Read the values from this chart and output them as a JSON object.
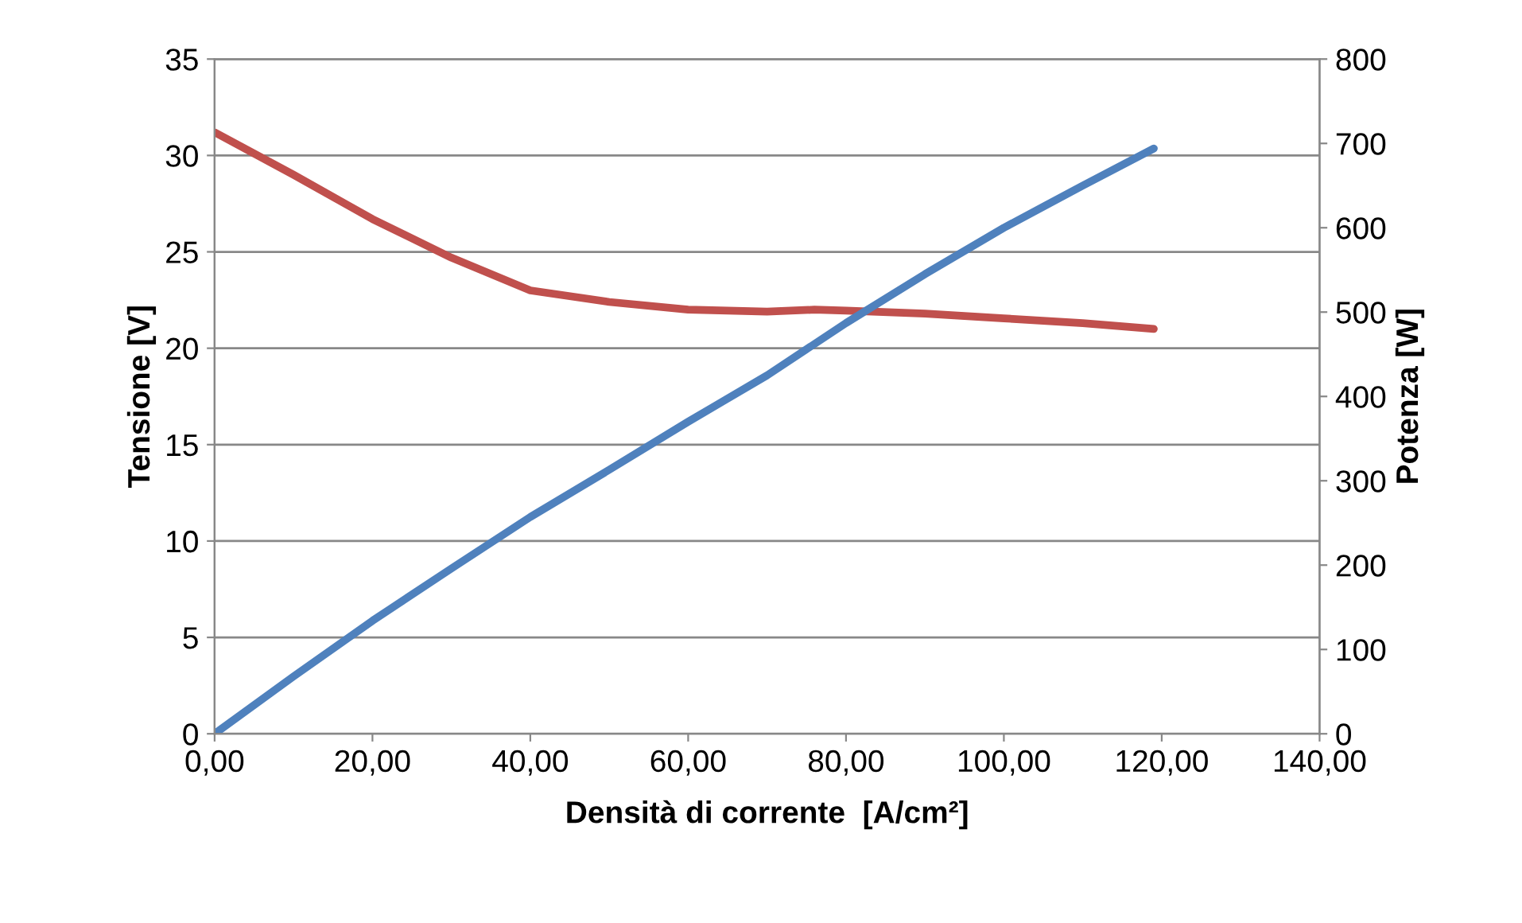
{
  "chart_data": {
    "type": "line",
    "xlabel": "Densità di corrente  [A/cm²]",
    "ylabel": "Tensione [V]",
    "y2label": "Potenza [W]",
    "xlim": [
      0,
      140
    ],
    "xticks": [
      {
        "value": 0,
        "label": "0,00"
      },
      {
        "value": 20,
        "label": "20,00"
      },
      {
        "value": 40,
        "label": "40,00"
      },
      {
        "value": 60,
        "label": "60,00"
      },
      {
        "value": 80,
        "label": "80,00"
      },
      {
        "value": 100,
        "label": "100,00"
      },
      {
        "value": 120,
        "label": "120,00"
      },
      {
        "value": 140,
        "label": "140,00"
      }
    ],
    "ylim": [
      0,
      35
    ],
    "yticks": [
      0,
      5,
      10,
      15,
      20,
      25,
      30,
      35
    ],
    "y2lim": [
      0,
      800
    ],
    "y2ticks": [
      0,
      100,
      200,
      300,
      400,
      500,
      600,
      700,
      800
    ],
    "grid": "y",
    "marker": "none",
    "line_style": "solid",
    "series": [
      {
        "color": "#c0504d",
        "x": [
          0,
          10,
          20,
          30,
          40,
          50,
          60,
          70,
          76,
          80,
          90,
          100,
          110,
          119
        ],
        "values": [
          31.2,
          29.0,
          26.7,
          24.7,
          23.0,
          22.4,
          22.0,
          21.9,
          22.0,
          21.95,
          21.8,
          21.55,
          21.3,
          21.0
        ]
      },
      {
        "color": "#4f81bd",
        "axis": "y2",
        "x": [
          0,
          10,
          20,
          30,
          40,
          50,
          60,
          70,
          80,
          90,
          100,
          110,
          119
        ],
        "values": [
          0,
          68,
          134,
          196,
          257,
          313,
          370,
          425,
          487,
          545,
          600,
          650,
          694
        ]
      }
    ]
  }
}
